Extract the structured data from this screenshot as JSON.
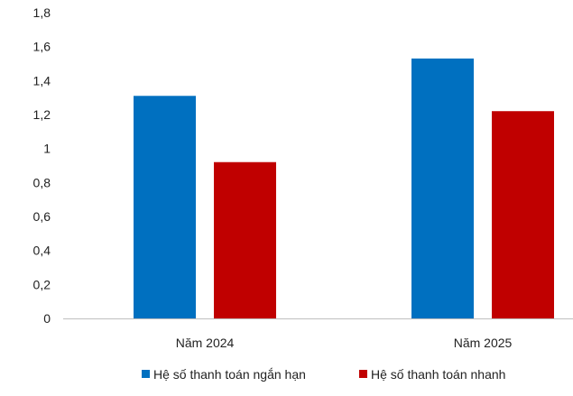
{
  "chart_data": {
    "type": "bar",
    "title": "",
    "xlabel": "",
    "ylabel": "",
    "categories": [
      "Năm 2024",
      "Năm 2025"
    ],
    "series": [
      {
        "name": "Hệ số thanh toán ngắn hạn",
        "color": "#0070C0",
        "values": [
          1.31,
          1.53
        ]
      },
      {
        "name": "Hệ số thanh toán nhanh",
        "color": "#C00000",
        "values": [
          0.92,
          1.22
        ]
      }
    ],
    "ylim": [
      0,
      1.8
    ],
    "yticks": [
      "0",
      "0,2",
      "0,4",
      "0,6",
      "0,8",
      "1",
      "1,2",
      "1,4",
      "1,6",
      "1,8"
    ],
    "grid": false,
    "legend_position": "bottom"
  }
}
